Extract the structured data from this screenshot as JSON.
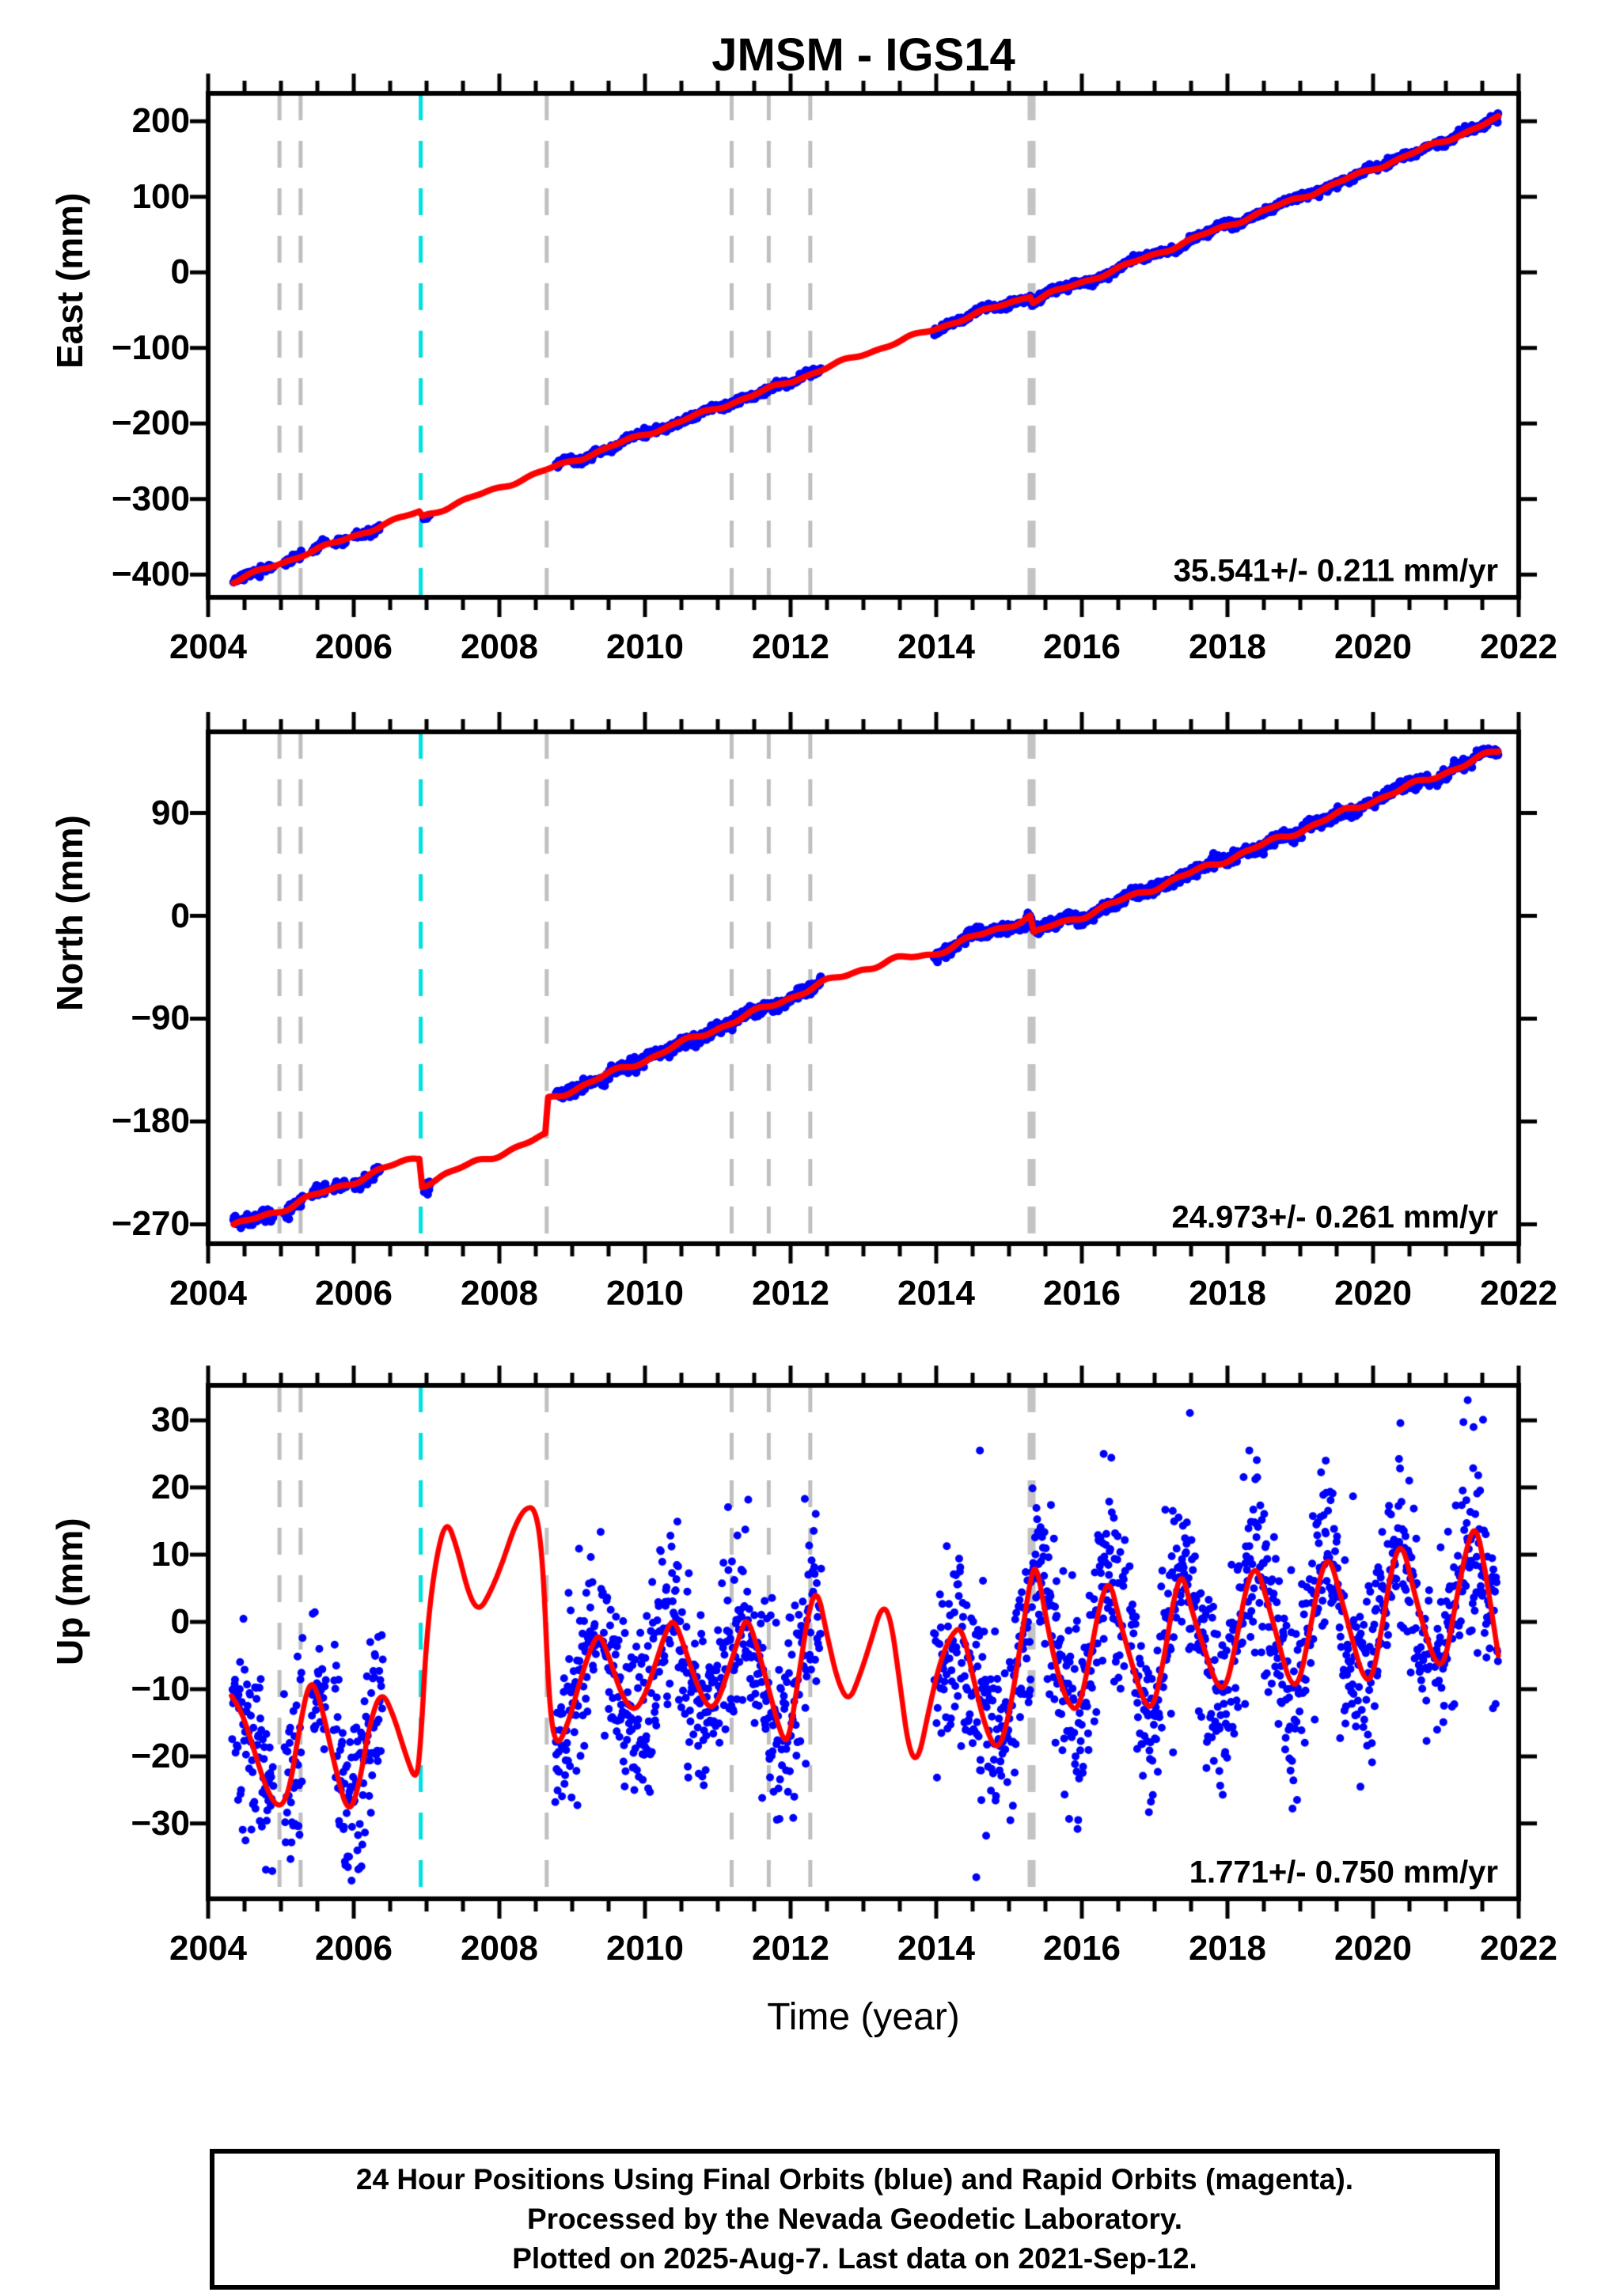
{
  "title": "JMSM - IGS14",
  "time_axis_label": "Time (year)",
  "footer": {
    "line1": "24 Hour Positions Using Final Orbits (blue) and Rapid Orbits (magenta).",
    "line2": "Processed by the Nevada Geodetic Laboratory.",
    "line3": "Plotted on 2025-Aug-7. Last data on 2021-Sep-12."
  },
  "colors": {
    "dots": "#0000ff",
    "model_line": "#ff0000",
    "event_thin": "#bfbfbf",
    "event_thick": "#c3c3c3",
    "event_cyan": "#00e0e0",
    "frame": "#000000"
  },
  "events": [
    {
      "t": 2004.98,
      "style": "thin"
    },
    {
      "t": 2005.27,
      "style": "thin"
    },
    {
      "t": 2006.92,
      "style": "cyan"
    },
    {
      "t": 2008.65,
      "style": "thin"
    },
    {
      "t": 2011.19,
      "style": "thin"
    },
    {
      "t": 2011.7,
      "style": "thin"
    },
    {
      "t": 2012.27,
      "style": "thin"
    },
    {
      "t": 2015.31,
      "style": "thick"
    }
  ],
  "x_axis": {
    "xlim": [
      2004,
      2022
    ],
    "xticks": [
      2004,
      2006,
      2008,
      2010,
      2012,
      2014,
      2016,
      2018,
      2020,
      2022
    ],
    "xminor": 0.5
  },
  "chart_data": [
    {
      "id": "east",
      "type": "scatter",
      "ylabel": "East (mm)",
      "rate_label": "35.541+/- 0.211 mm/yr",
      "ylim": [
        -430,
        237
      ],
      "yticks": [
        200,
        100,
        0,
        -100,
        -200,
        -300,
        -400
      ],
      "trend_mm_per_yr": 35.541,
      "noise_sigma": 2.3,
      "dot_radius": 5.5,
      "seed": 11,
      "red_line": [
        [
          2004.35,
          -409
        ],
        [
          2004.7,
          -396
        ],
        [
          2005.0,
          -385
        ],
        [
          2005.3,
          -373
        ],
        [
          2005.7,
          -360
        ],
        [
          2006.0,
          -349
        ],
        [
          2006.4,
          -334
        ],
        [
          2006.9,
          -317
        ],
        [
          2006.94,
          -323
        ],
        [
          2007.3,
          -310
        ],
        [
          2007.8,
          -292
        ],
        [
          2008.3,
          -274
        ],
        [
          2008.64,
          -262
        ],
        [
          2008.9,
          -253
        ],
        [
          2009.5,
          -232
        ],
        [
          2010.0,
          -214
        ],
        [
          2010.5,
          -197
        ],
        [
          2011.0,
          -179
        ],
        [
          2011.5,
          -162
        ],
        [
          2012.0,
          -144
        ],
        [
          2012.42,
          -129
        ],
        [
          2013.0,
          -108
        ],
        [
          2013.5,
          -91
        ],
        [
          2013.97,
          -75
        ],
        [
          2014.5,
          -57
        ],
        [
          2015.0,
          -40
        ],
        [
          2015.29,
          -30
        ],
        [
          2015.33,
          -38
        ],
        [
          2015.55,
          -29
        ],
        [
          2016.0,
          -13
        ],
        [
          2016.5,
          5
        ],
        [
          2017.0,
          24
        ],
        [
          2017.5,
          43
        ],
        [
          2018.0,
          62
        ],
        [
          2018.5,
          81
        ],
        [
          2019.0,
          99
        ],
        [
          2019.5,
          118
        ],
        [
          2020.0,
          137
        ],
        [
          2020.5,
          156
        ],
        [
          2021.0,
          175
        ],
        [
          2021.4,
          191
        ],
        [
          2021.72,
          204
        ]
      ],
      "blue_segments": [
        [
          2004.35,
          2006.36
        ],
        [
          2006.96,
          2007.05
        ],
        [
          2008.78,
          2012.42
        ],
        [
          2013.97,
          2021.72
        ]
      ],
      "gaps": [
        [
          2004.9,
          2005.04
        ],
        [
          2005.3,
          2005.42
        ],
        [
          2005.62,
          2005.72
        ],
        [
          2005.9,
          2006.0
        ],
        [
          2009.33,
          2009.38
        ],
        [
          2016.6,
          2016.65
        ],
        [
          2020.78,
          2020.84
        ]
      ],
      "outliers": []
    },
    {
      "id": "north",
      "type": "scatter",
      "ylabel": "North (mm)",
      "rate_label": "24.973+/- 0.261 mm/yr",
      "ylim": [
        -287,
        161
      ],
      "yticks": [
        90,
        0,
        -90,
        -180,
        -270
      ],
      "trend_mm_per_yr": 24.973,
      "noise_sigma": 2.4,
      "dot_radius": 5.5,
      "seed": 22,
      "red_line": [
        [
          2004.35,
          -272
        ],
        [
          2004.7,
          -264
        ],
        [
          2005.0,
          -257
        ],
        [
          2005.3,
          -249
        ],
        [
          2005.7,
          -240
        ],
        [
          2006.0,
          -232
        ],
        [
          2006.4,
          -222
        ],
        [
          2006.9,
          -211
        ],
        [
          2006.94,
          -235
        ],
        [
          2007.2,
          -228
        ],
        [
          2007.6,
          -218
        ],
        [
          2008.0,
          -208
        ],
        [
          2008.35,
          -200
        ],
        [
          2008.63,
          -193
        ],
        [
          2008.67,
          -161
        ],
        [
          2009.0,
          -152
        ],
        [
          2009.5,
          -139
        ],
        [
          2010.0,
          -126
        ],
        [
          2010.5,
          -112
        ],
        [
          2011.0,
          -98
        ],
        [
          2011.5,
          -85
        ],
        [
          2012.0,
          -71
        ],
        [
          2012.42,
          -60
        ],
        [
          2013.0,
          -46
        ],
        [
          2013.5,
          -38
        ],
        [
          2013.97,
          -33
        ],
        [
          2014.4,
          -22
        ],
        [
          2014.9,
          -10
        ],
        [
          2015.29,
          -1
        ],
        [
          2015.34,
          -16
        ],
        [
          2015.6,
          -9
        ],
        [
          2016.0,
          0
        ],
        [
          2016.5,
          12
        ],
        [
          2017.0,
          25
        ],
        [
          2017.5,
          37
        ],
        [
          2018.0,
          50
        ],
        [
          2018.5,
          62
        ],
        [
          2019.0,
          75
        ],
        [
          2019.5,
          88
        ],
        [
          2020.0,
          101
        ],
        [
          2020.5,
          113
        ],
        [
          2021.0,
          126
        ],
        [
          2021.4,
          136
        ],
        [
          2021.72,
          144
        ]
      ],
      "blue_segments": [
        [
          2004.35,
          2006.36
        ],
        [
          2006.96,
          2007.05
        ],
        [
          2008.78,
          2012.42
        ],
        [
          2013.97,
          2021.72
        ]
      ],
      "gaps": [
        [
          2004.9,
          2005.04
        ],
        [
          2005.3,
          2005.42
        ],
        [
          2005.62,
          2005.72
        ],
        [
          2005.9,
          2006.0
        ],
        [
          2009.33,
          2009.38
        ],
        [
          2016.6,
          2016.65
        ],
        [
          2020.78,
          2020.84
        ]
      ],
      "outliers": []
    },
    {
      "id": "up",
      "type": "scatter",
      "ylabel": "Up (mm)",
      "rate_label": "1.771+/- 0.750 mm/yr",
      "ylim": [
        -41.2,
        35.2
      ],
      "yticks": [
        30,
        20,
        10,
        0,
        -10,
        -20,
        -30
      ],
      "trend_mm_per_yr": 1.771,
      "noise_sigma": 6.8,
      "dot_radius": 5.0,
      "seed": 33,
      "red_line": [
        [
          2004.32,
          -11
        ],
        [
          2004.45,
          -13
        ],
        [
          2004.6,
          -18
        ],
        [
          2004.8,
          -25
        ],
        [
          2004.98,
          -28
        ],
        [
          2005.12,
          -25
        ],
        [
          2005.25,
          -16
        ],
        [
          2005.4,
          -8
        ],
        [
          2005.55,
          -12
        ],
        [
          2005.75,
          -22
        ],
        [
          2005.93,
          -29
        ],
        [
          2006.08,
          -24
        ],
        [
          2006.22,
          -15
        ],
        [
          2006.38,
          -10
        ],
        [
          2006.55,
          -14
        ],
        [
          2006.72,
          -20
        ],
        [
          2006.86,
          -24
        ],
        [
          2006.92,
          -18
        ],
        [
          2007.0,
          -2
        ],
        [
          2007.12,
          9
        ],
        [
          2007.27,
          15.5
        ],
        [
          2007.42,
          11
        ],
        [
          2007.58,
          4
        ],
        [
          2007.72,
          1.5
        ],
        [
          2007.88,
          4.5
        ],
        [
          2008.05,
          9
        ],
        [
          2008.2,
          14
        ],
        [
          2008.35,
          17
        ],
        [
          2008.5,
          17
        ],
        [
          2008.6,
          9
        ],
        [
          2008.68,
          -12
        ],
        [
          2008.78,
          -19
        ],
        [
          2008.95,
          -15
        ],
        [
          2009.1,
          -9
        ],
        [
          2009.25,
          -4
        ],
        [
          2009.37,
          -1.5
        ],
        [
          2009.5,
          -5
        ],
        [
          2009.68,
          -11
        ],
        [
          2009.85,
          -13.5
        ],
        [
          2010.0,
          -11
        ],
        [
          2010.15,
          -6
        ],
        [
          2010.3,
          -1
        ],
        [
          2010.4,
          0.5
        ],
        [
          2010.55,
          -4
        ],
        [
          2010.7,
          -9
        ],
        [
          2010.87,
          -13
        ],
        [
          2011.0,
          -12
        ],
        [
          2011.15,
          -7
        ],
        [
          2011.3,
          -2
        ],
        [
          2011.4,
          1
        ],
        [
          2011.55,
          -4
        ],
        [
          2011.7,
          -10
        ],
        [
          2011.87,
          -17
        ],
        [
          2011.97,
          -18
        ],
        [
          2012.1,
          -9
        ],
        [
          2012.25,
          2
        ],
        [
          2012.37,
          5
        ],
        [
          2012.5,
          -2
        ],
        [
          2012.65,
          -9
        ],
        [
          2012.8,
          -12
        ],
        [
          2012.95,
          -8
        ],
        [
          2013.1,
          -3
        ],
        [
          2013.25,
          2.5
        ],
        [
          2013.37,
          1
        ],
        [
          2013.5,
          -9
        ],
        [
          2013.62,
          -19
        ],
        [
          2013.75,
          -21
        ],
        [
          2013.9,
          -13
        ],
        [
          2014.05,
          -6
        ],
        [
          2014.2,
          -2
        ],
        [
          2014.35,
          -0.5
        ],
        [
          2014.5,
          -8
        ],
        [
          2014.68,
          -16
        ],
        [
          2014.85,
          -19.5
        ],
        [
          2015.0,
          -14
        ],
        [
          2015.15,
          -4
        ],
        [
          2015.3,
          7
        ],
        [
          2015.38,
          8.5
        ],
        [
          2015.5,
          1
        ],
        [
          2015.65,
          -7
        ],
        [
          2015.8,
          -12
        ],
        [
          2015.95,
          -13.5
        ],
        [
          2016.1,
          -6
        ],
        [
          2016.25,
          3
        ],
        [
          2016.38,
          6.5
        ],
        [
          2016.5,
          1
        ],
        [
          2016.68,
          -6
        ],
        [
          2016.85,
          -12
        ],
        [
          2016.98,
          -13
        ],
        [
          2017.12,
          -6
        ],
        [
          2017.27,
          4
        ],
        [
          2017.38,
          7.5
        ],
        [
          2017.5,
          2
        ],
        [
          2017.68,
          -4
        ],
        [
          2017.85,
          -9.5
        ],
        [
          2017.98,
          -10
        ],
        [
          2018.12,
          -3
        ],
        [
          2018.27,
          6
        ],
        [
          2018.4,
          8.5
        ],
        [
          2018.55,
          3
        ],
        [
          2018.7,
          -3
        ],
        [
          2018.85,
          -9
        ],
        [
          2018.98,
          -9.5
        ],
        [
          2019.12,
          -2
        ],
        [
          2019.27,
          7
        ],
        [
          2019.4,
          10
        ],
        [
          2019.55,
          4
        ],
        [
          2019.7,
          -2
        ],
        [
          2019.85,
          -8
        ],
        [
          2019.98,
          -9
        ],
        [
          2020.12,
          -1
        ],
        [
          2020.27,
          9
        ],
        [
          2020.4,
          12
        ],
        [
          2020.55,
          5
        ],
        [
          2020.7,
          -1
        ],
        [
          2020.85,
          -6
        ],
        [
          2020.98,
          -6.5
        ],
        [
          2021.12,
          2
        ],
        [
          2021.3,
          12
        ],
        [
          2021.42,
          14.5
        ],
        [
          2021.55,
          7
        ],
        [
          2021.65,
          0
        ],
        [
          2021.72,
          -5
        ]
      ],
      "blue_segments": [
        [
          2004.33,
          2006.4
        ],
        [
          2008.76,
          2012.42
        ],
        [
          2013.97,
          2021.72
        ]
      ],
      "gaps": [
        [
          2004.9,
          2005.04
        ],
        [
          2005.3,
          2005.42
        ],
        [
          2005.62,
          2005.72
        ],
        [
          2009.33,
          2009.38
        ],
        [
          2016.6,
          2016.65
        ],
        [
          2020.78,
          2020.84
        ]
      ],
      "outliers": [
        [
          2005.92,
          -36.5
        ],
        [
          2005.97,
          -38.5
        ],
        [
          2006.05,
          -34
        ],
        [
          2012.05,
          -26
        ],
        [
          2014.55,
          -38
        ],
        [
          2014.62,
          -26.5
        ],
        [
          2014.6,
          25.5
        ],
        [
          2016.3,
          25
        ],
        [
          2018.3,
          25.5
        ],
        [
          2019.35,
          24
        ],
        [
          2021.3,
          33
        ],
        [
          2021.38,
          29
        ]
      ]
    }
  ]
}
